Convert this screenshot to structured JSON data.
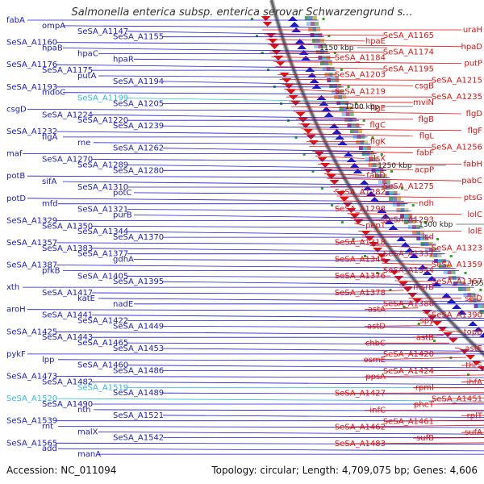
{
  "title": "Salmonella enterica subsp. enterica serovar Schwarzengrund s...",
  "footer": {
    "accession": "Accession: NC_011094",
    "topology": "Topology: circular; Length: 4,709,075 bp; Genes: 4,606"
  },
  "colors": {
    "left_strand": "#1a1acc",
    "right_strand": "#e01010",
    "highlight": "#33bbdd",
    "backbone": "#666666",
    "tick": "#22aa22"
  },
  "kbp_ticks": [
    "1150 kbp",
    "1200 kbp",
    "1250 kbp",
    "1300 kbp",
    "1350 kbp",
    "1400 kbp",
    "1450 kbp",
    "kbp"
  ],
  "left_labels": [
    "fabA",
    "ompA",
    "SeSA_A1147",
    "SeSA_A1155",
    "SeSA_A1160",
    "hpaB",
    "hpaC",
    "hpaR",
    "SeSA_A1176",
    "SeSA_A1175",
    "putA",
    "SeSA_A1194",
    "SeSA_A1193",
    "mdoC",
    "SeSA_A1199",
    "SeSA_A1205",
    "csgD",
    "SeSA_A1224",
    "SeSA_A1220",
    "SeSA_A1239",
    "SeSA_A1232",
    "flgA",
    "rne",
    "SeSA_A1262",
    "maf",
    "SeSA_A1270",
    "SeSA_A1289",
    "SeSA_A1280",
    "potB",
    "sifA",
    "SeSA_A1310",
    "potC",
    "potD",
    "mfd",
    "SeSA_A1321",
    "purB",
    "SeSA_A1329",
    "SeSA_A1350",
    "SeSA_A1344",
    "SeSA_A1370",
    "SeSA_A1357",
    "SeSA_A1383",
    "SeSA_A1377",
    "gdhA",
    "SeSA_A1387",
    "pfkB",
    "SeSA_A1405",
    "SeSA_A1395",
    "xth",
    "SeSA_A1417",
    "katE",
    "nadE",
    "aroH",
    "SeSA_A1441",
    "SeSA_A1422",
    "SeSA_A1449",
    "SeSA_A1425",
    "SeSA_A1443",
    "SeSA_A1465",
    "SeSA_A1453",
    "pykF",
    "lpp",
    "SeSA_A1460",
    "SeSA_A1486",
    "SeSA_A1473",
    "SeSA_A1482",
    "SeSA_A1519",
    "SeSA_A1489",
    "SeSA_A1520",
    "SeSA_A1490",
    "nth",
    "SeSA_A1521",
    "SeSA_A1539",
    "rnt",
    "malX",
    "SeSA_A1542",
    "SeSA_A1565",
    "add",
    "manA"
  ],
  "right_labels": [
    "uraH",
    "SeSA_A1165",
    "hpaE",
    "hpaD",
    "SeSA_A1174",
    "SeSA_A1184",
    "putP",
    "SeSA_A1195",
    "SeSA_A1203",
    "SeSA_A1215",
    "csgB",
    "SeSA_A1219",
    "SeSA_A1235",
    "mviN",
    "flgE",
    "flgD",
    "flgB",
    "flgC",
    "flgF",
    "flgL",
    "flgK",
    "SeSA_A1256",
    "fabF",
    "plsX",
    "fabH",
    "acpP",
    "fabD",
    "pabC",
    "SeSA_A1275",
    "SeSA_A1282",
    "ptsG",
    "ndh",
    "SeSA_A1298",
    "lolC",
    "SeSA_A1293",
    "pepT",
    "lolE",
    "icd",
    "SeSA_A1318",
    "SeSA_A1323",
    "SeSA_A1337",
    "SeSA_A1346",
    "SeSA_A1359",
    "SeSA_A1354",
    "SeSA_A1376",
    "SeSA_A1367",
    "msrB",
    "SeSA_A1378",
    "selD",
    "SeSA_A1386",
    "astA",
    "SeSA_A1390",
    "spy",
    "astD",
    "topB",
    "astB",
    "chbC",
    "astE",
    "SeSA_A1420",
    "osmE",
    "thrS",
    "SeSA_A1424",
    "ppsA",
    "ihfA",
    "rpmI",
    "SeSA_A1427",
    "SeSA_A1451",
    "pheT",
    "infC",
    "rplT",
    "SeSA_A1461",
    "SeSA_A1462",
    "sufA",
    "sufB",
    "SeSA_A1483"
  ]
}
